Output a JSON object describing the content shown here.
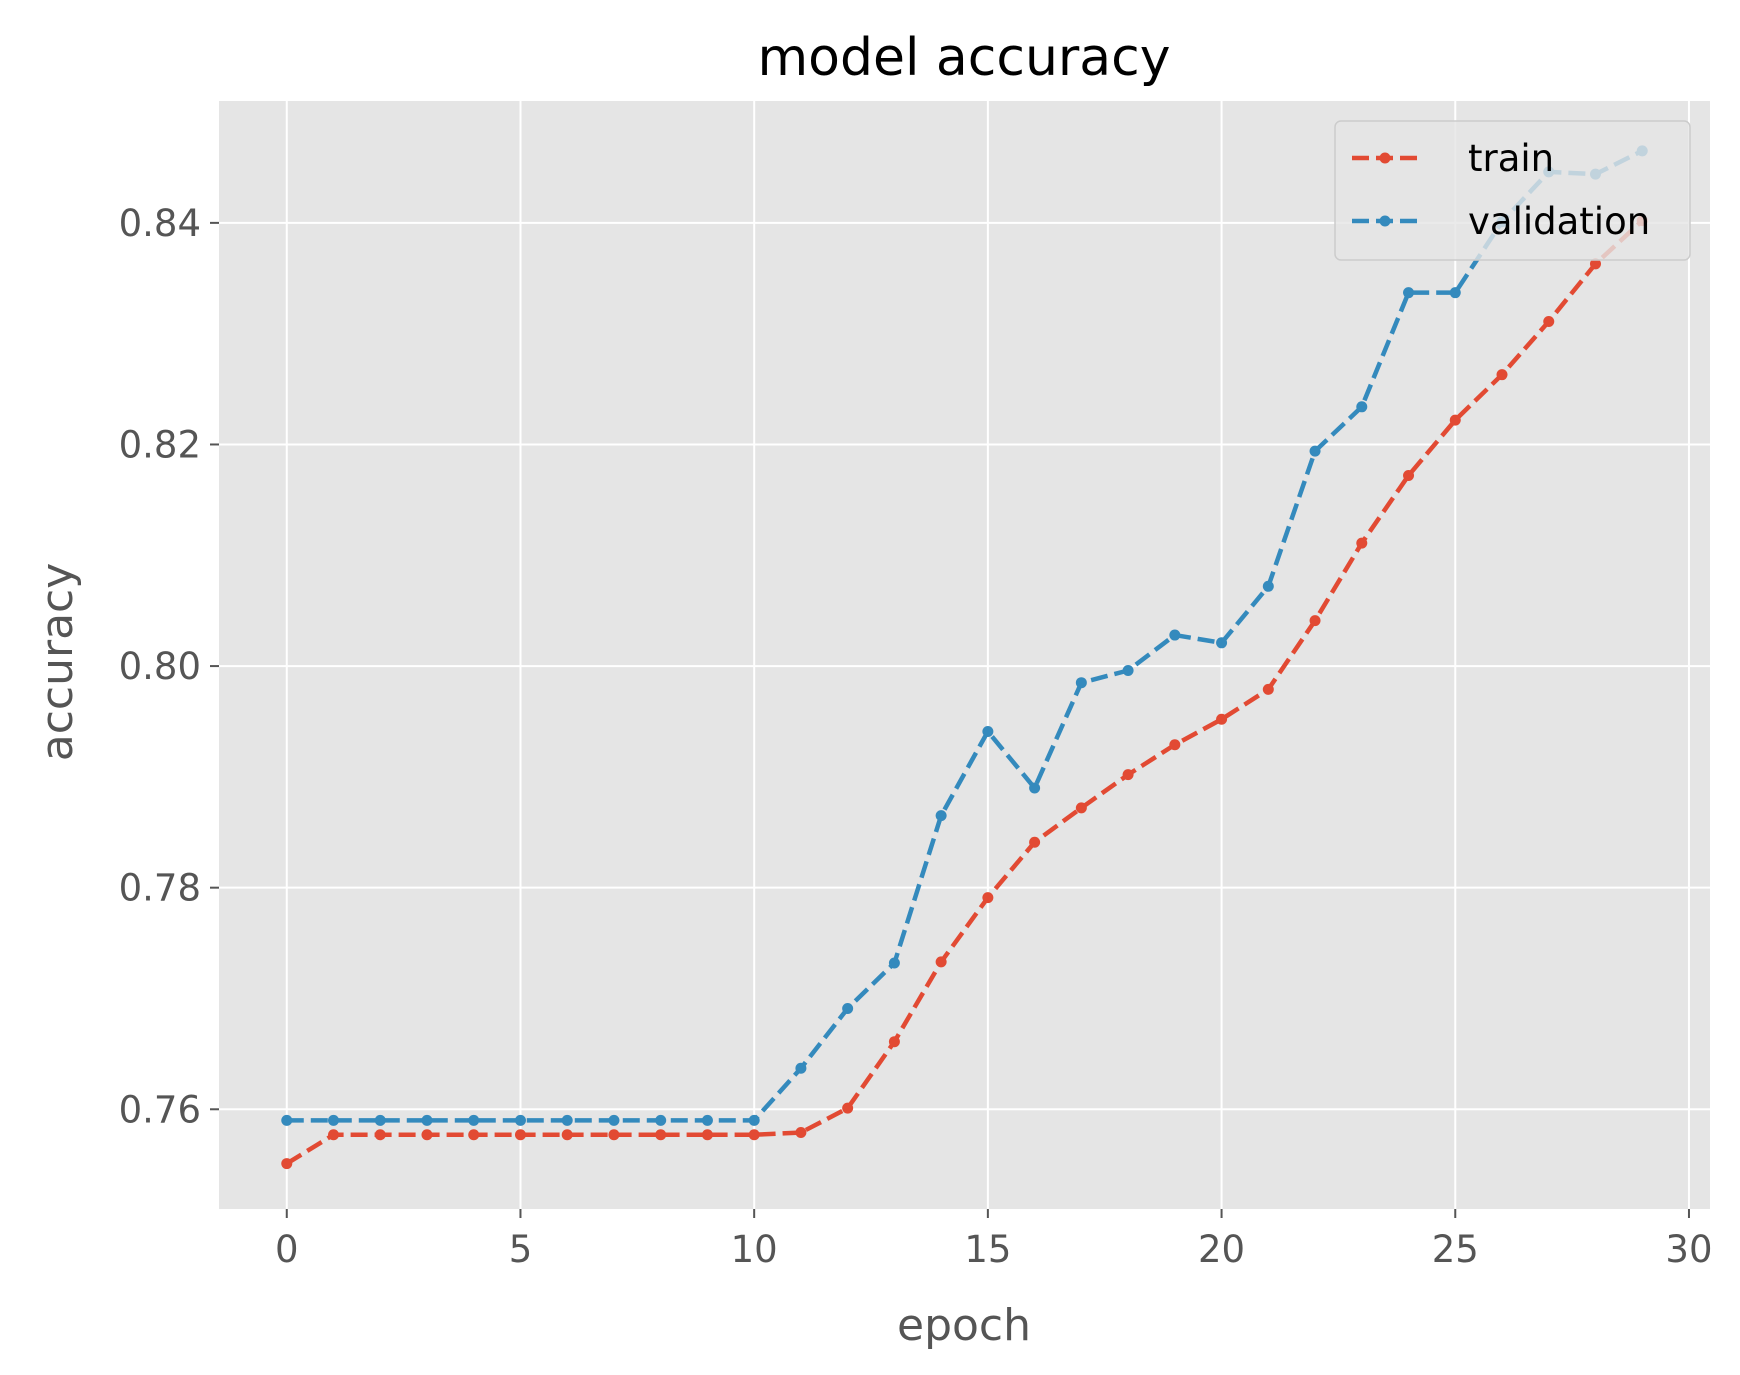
{
  "chart_data": {
    "type": "line",
    "title": "model accuracy",
    "xlabel": "epoch",
    "ylabel": "accuracy",
    "xlim": [
      -1.45,
      30.45
    ],
    "ylim": [
      0.751,
      0.851
    ],
    "xticks": [
      0,
      5,
      10,
      15,
      20,
      25,
      30
    ],
    "xtick_labels": [
      "0",
      "5",
      "10",
      "15",
      "20",
      "25",
      "30"
    ],
    "yticks": [
      0.76,
      0.78,
      0.8,
      0.82,
      0.84
    ],
    "ytick_labels": [
      "0.76",
      "0.78",
      "0.80",
      "0.82",
      "0.84"
    ],
    "grid": true,
    "legend_position": "top-right",
    "x": [
      0,
      1,
      2,
      3,
      4,
      5,
      6,
      7,
      8,
      9,
      10,
      11,
      12,
      13,
      14,
      15,
      16,
      17,
      18,
      19,
      20,
      21,
      22,
      23,
      24,
      25,
      26,
      27,
      28,
      29
    ],
    "series": [
      {
        "name": "train",
        "color": "#E24A33",
        "values": [
          0.7551,
          0.7577,
          0.7577,
          0.7577,
          0.7577,
          0.7577,
          0.7577,
          0.7577,
          0.7577,
          0.7577,
          0.7577,
          0.7579,
          0.7601,
          0.7661,
          0.7733,
          0.7791,
          0.7841,
          0.7872,
          0.7902,
          0.7929,
          0.7952,
          0.7979,
          0.8041,
          0.8111,
          0.8172,
          0.8222,
          0.8263,
          0.8311,
          0.8363,
          0.8402
        ]
      },
      {
        "name": "validation",
        "color": "#348ABD",
        "values": [
          0.759,
          0.759,
          0.759,
          0.759,
          0.759,
          0.759,
          0.759,
          0.759,
          0.759,
          0.759,
          0.759,
          0.7637,
          0.7691,
          0.7732,
          0.7865,
          0.7941,
          0.789,
          0.7985,
          0.7996,
          0.8028,
          0.8021,
          0.8072,
          0.8194,
          0.8234,
          0.8337,
          0.8337,
          0.8401,
          0.8446,
          0.8444,
          0.8465
        ]
      }
    ]
  }
}
